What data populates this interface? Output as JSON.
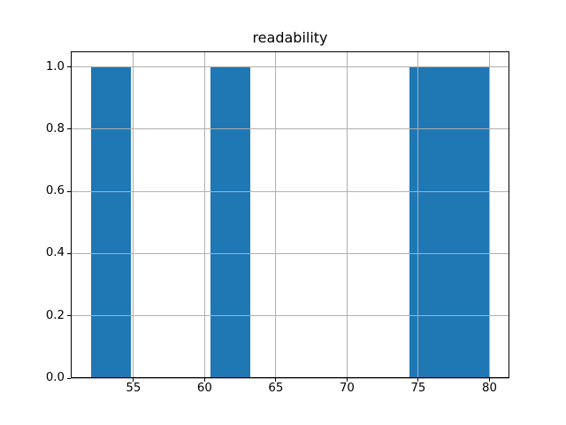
{
  "figure": {
    "background": "#ffffff"
  },
  "chart_data": {
    "type": "bar",
    "subtype": "histogram",
    "title": "readability",
    "xlabel": "",
    "ylabel": "",
    "xlim": [
      50.6,
      81.4
    ],
    "ylim": [
      0,
      1.05
    ],
    "xticks": {
      "values": [
        55,
        60,
        65,
        70,
        75,
        80
      ],
      "labels": [
        "55",
        "60",
        "65",
        "70",
        "75",
        "80"
      ]
    },
    "yticks": {
      "values": [
        0.0,
        0.2,
        0.4,
        0.6,
        0.8,
        1.0
      ],
      "labels": [
        "0.0",
        "0.2",
        "0.4",
        "0.6",
        "0.8",
        "1.0"
      ]
    },
    "histogram": {
      "bin_start": 52.0,
      "bin_width": 2.8,
      "bin_count": 10,
      "counts": [
        1,
        0,
        0,
        1,
        0,
        0,
        0,
        0,
        1,
        1
      ]
    },
    "bar_color": "#1f77b4",
    "grid": true,
    "grid_color": "#b0b0b0",
    "grid_above_bars": true,
    "legend": null
  }
}
